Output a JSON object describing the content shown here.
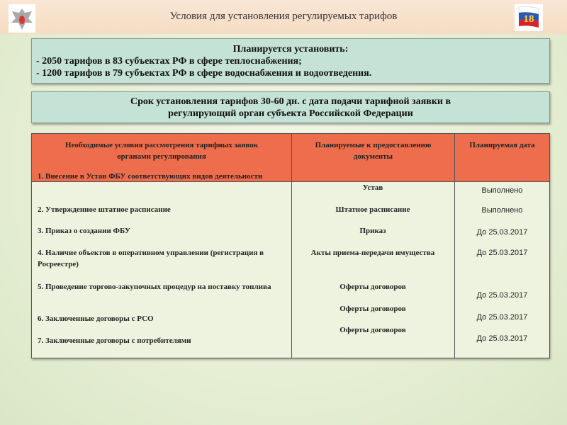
{
  "header": {
    "title": "Условия для установления регулируемых тарифов",
    "slide_number": "18"
  },
  "box1": {
    "heading": "Планируется установить:",
    "lines": [
      "- 2050 тарифов в 83 субъектах РФ в сфере теплоснабжения;",
      "- 1200 тарифов в 79 субъектах РФ в сфере водоснабжения и водоотведения."
    ]
  },
  "box2": {
    "lines": [
      "Срок установления тарифов 30-60 дн. с дата подачи тарифной заявки в",
      "регулирующий орган субъекта Российской Федерации"
    ]
  },
  "table": {
    "headers": [
      "Необходимые условия рассмотрения тарифных заявок органами регулирования",
      "Планируемые к предоставлению документы",
      "Планируемая дата"
    ],
    "conditions": [
      "1. Внесение в Устав ФБУ соответствующих видов деятельности",
      "2. Утвержденное штатное расписание",
      "3. Приказ о создании ФБУ",
      "4. Наличие объектов в оперативном управлении (регистрация в Росреестре)",
      "5. Проведение торгово-закупочных процедур  на поставку топлива",
      "6. Заключенные договоры с РСО",
      "7. Заключенные договоры с потребителями"
    ],
    "documents": [
      "Устав",
      "Штатное расписание",
      "Приказ",
      "Акты приема-передачи имущества",
      "Оферты договоров",
      "Оферты договоров",
      "Оферты договоров"
    ],
    "dates": [
      "Выполнено",
      "Выполнено",
      "До 25.03.2017",
      "До 25.03.2017",
      "До 25.03.2017",
      "До 25.03.2017",
      "До 25.03.2017"
    ]
  },
  "colors": {
    "header_band": "#f8e3cf",
    "box": "#c4e2d6",
    "table_header": "#ee6d4c"
  }
}
